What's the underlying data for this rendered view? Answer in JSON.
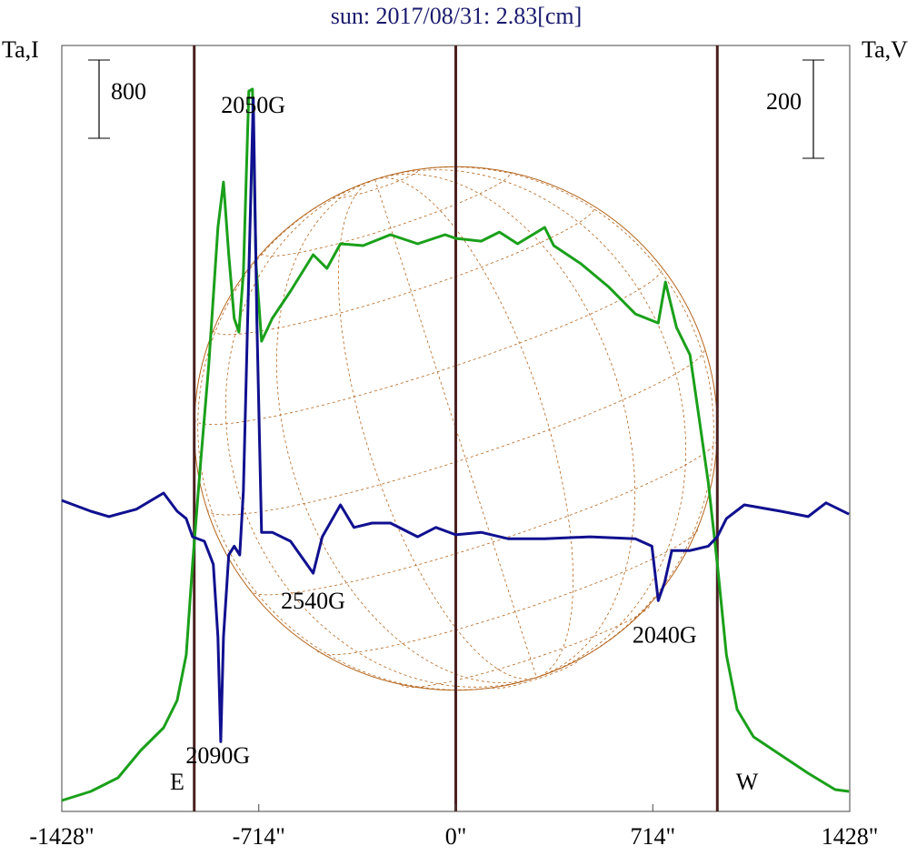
{
  "chart_data": {
    "type": "line",
    "title": "sun: 2017/08/31: 2.83[cm]",
    "y_label": "Ta,I",
    "y2_label": "Ta,V",
    "xlim": [
      -1428,
      1428
    ],
    "xticks": [
      {
        "value": -1428,
        "label": "-1428\""
      },
      {
        "value": -714,
        "label": "-714\""
      },
      {
        "value": 0,
        "label": "0\""
      },
      {
        "value": 714,
        "label": "714\""
      },
      {
        "value": 1428,
        "label": "1428\""
      }
    ],
    "ylim": [
      0,
      7833
    ],
    "y2lim": [
      -559,
      1000
    ],
    "scale_bar": 800,
    "scale_bar2": 200,
    "solar_radius": 948,
    "vlines": [
      -948,
      0,
      948
    ],
    "series": [
      {
        "name": "Ta,I",
        "color": "#1aa01a",
        "x": [
          -1428,
          -1323,
          -1224,
          -1142,
          -1059,
          -1010,
          -977,
          -954,
          -928,
          -895,
          -862,
          -842,
          -823,
          -803,
          -786,
          -770,
          -750,
          -737,
          -724,
          -704,
          -665,
          -599,
          -517,
          -467,
          -418,
          -336,
          -237,
          -138,
          -39,
          0,
          92,
          158,
          224,
          322,
          355,
          454,
          553,
          651,
          734,
          760,
          800,
          849,
          882,
          915,
          948,
          981,
          1020,
          1079,
          1178,
          1277,
          1375,
          1425
        ],
        "values": [
          112,
          205,
          344,
          623,
          856,
          1135,
          1600,
          2530,
          3460,
          4577,
          5972,
          6437,
          5693,
          5042,
          4902,
          5507,
          7367,
          7386,
          5600,
          4809,
          5042,
          5321,
          5693,
          5553,
          5805,
          5786,
          5898,
          5805,
          5898,
          5860,
          5832,
          5925,
          5805,
          5972,
          5786,
          5600,
          5367,
          5088,
          4995,
          5414,
          4949,
          4670,
          4019,
          3367,
          2530,
          1600,
          1042,
          763,
          577,
          391,
          223,
          205
        ]
      },
      {
        "name": "Ta,V",
        "color": "#101090",
        "axis": "y2",
        "x": [
          -1428,
          -1323,
          -1257,
          -1158,
          -1059,
          -1010,
          -977,
          -954,
          -911,
          -879,
          -862,
          -852,
          -842,
          -823,
          -803,
          -783,
          -770,
          -750,
          -734,
          -721,
          -704,
          -665,
          -599,
          -517,
          -484,
          -418,
          -369,
          -303,
          -237,
          -138,
          -72,
          0,
          92,
          191,
          322,
          487,
          651,
          711,
          734,
          757,
          783,
          849,
          915,
          948,
          981,
          1046,
          1178,
          1277,
          1342,
          1425
        ],
        "values": [
          74,
          52,
          41,
          56,
          89,
          52,
          37,
          0,
          -9,
          -56,
          -204,
          -417,
          -204,
          -37,
          -19,
          -37,
          93,
          537,
          893,
          444,
          9,
          9,
          -9,
          -74,
          0,
          65,
          19,
          28,
          28,
          0,
          19,
          4,
          9,
          -4,
          -4,
          0,
          -4,
          -19,
          -130,
          -93,
          -28,
          -28,
          -19,
          0,
          37,
          65,
          52,
          41,
          69,
          46
        ]
      }
    ],
    "annotations": [
      {
        "text": "2050G",
        "x": -734,
        "y": 7200
      },
      {
        "text": "2090G",
        "x": -862,
        "y": 550
      },
      {
        "text": "2540G",
        "x": -517,
        "y": 2130
      },
      {
        "text": "2040G",
        "x": 757,
        "y": 1780
      },
      {
        "text": "E",
        "x": -1010,
        "y": 280
      },
      {
        "text": "W",
        "x": 1056,
        "y": 280
      }
    ]
  }
}
